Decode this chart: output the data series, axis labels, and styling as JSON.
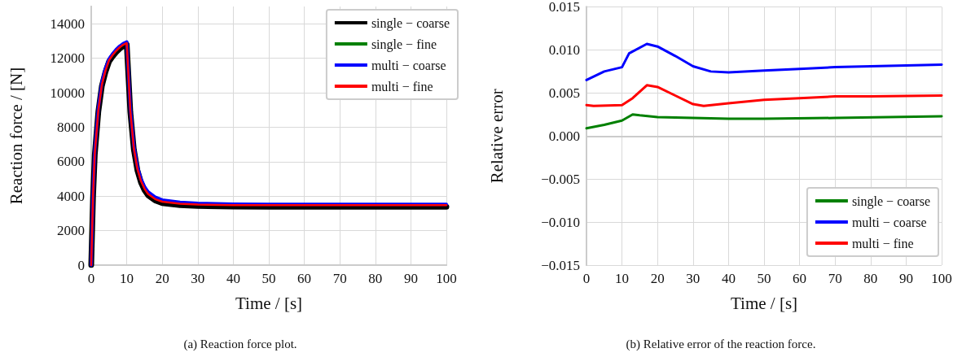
{
  "chart_data": [
    {
      "type": "line",
      "xlabel": "Time / [s]",
      "ylabel": "Reaction force / [N]",
      "annotations": [
        "(a) Reaction force plot."
      ],
      "xlim": [
        0,
        100
      ],
      "xticks": [
        0,
        10,
        20,
        30,
        40,
        50,
        60,
        70,
        80,
        90,
        100
      ],
      "ylim": [
        0,
        15000
      ],
      "yticks": [
        0,
        2000,
        4000,
        6000,
        8000,
        10000,
        12000,
        14000
      ],
      "grid": true,
      "legend": "top right",
      "line_style": "solid",
      "marker": "none",
      "x": [
        0,
        0.5,
        1,
        2,
        3,
        4,
        5,
        6,
        7,
        8,
        9,
        10,
        11,
        12,
        13,
        14,
        15,
        16,
        18,
        20,
        25,
        30,
        40,
        50,
        60,
        70,
        80,
        90,
        100
      ],
      "series": [
        {
          "name": "single − coarse",
          "color": "#000000",
          "values": [
            0,
            3900,
            6400,
            8900,
            10400,
            11200,
            11800,
            12100,
            12350,
            12550,
            12700,
            12800,
            8900,
            6700,
            5500,
            4800,
            4350,
            4050,
            3750,
            3600,
            3480,
            3430,
            3400,
            3390,
            3380,
            3380,
            3380,
            3380,
            3380
          ]
        },
        {
          "name": "single − fine",
          "color": "#008000",
          "values": [
            null,
            null,
            null,
            null,
            null,
            null,
            null,
            null,
            null,
            null,
            null,
            null,
            null,
            null,
            null,
            null,
            null,
            null,
            null,
            null,
            null,
            null,
            null,
            null,
            null,
            null,
            null,
            null,
            null
          ]
        },
        {
          "name": "multi − coarse",
          "color": "#0000ff",
          "values": [
            0,
            4100,
            6600,
            9100,
            10600,
            11400,
            11950,
            12250,
            12500,
            12700,
            12850,
            12950,
            9100,
            6900,
            5700,
            5000,
            4550,
            4250,
            3950,
            3780,
            3640,
            3580,
            3540,
            3530,
            3530,
            3530,
            3530,
            3530,
            3530
          ]
        },
        {
          "name": "multi − fine",
          "color": "#ff0000",
          "values": [
            0,
            3980,
            6480,
            8980,
            10480,
            11280,
            11880,
            12180,
            12430,
            12630,
            12780,
            12880,
            8980,
            6780,
            5580,
            4880,
            4430,
            4130,
            3830,
            3680,
            3560,
            3510,
            3480,
            3480,
            3480,
            3480,
            3480,
            3480,
            3480
          ]
        }
      ]
    },
    {
      "type": "line",
      "xlabel": "Time / [s]",
      "ylabel": "Relative error",
      "annotations": [
        "(b) Relative error of the reaction force."
      ],
      "xlim": [
        0,
        100
      ],
      "xticks": [
        0,
        10,
        20,
        30,
        40,
        50,
        60,
        70,
        80,
        90,
        100
      ],
      "ylim": [
        -0.015,
        0.015
      ],
      "yticks": [
        {
          "value": -0.015,
          "label": "−0.015"
        },
        {
          "value": -0.01,
          "label": "−0.010"
        },
        {
          "value": -0.005,
          "label": "−0.005"
        },
        {
          "value": 0,
          "label": "0.000"
        },
        {
          "value": 0.005,
          "label": "0.005"
        },
        {
          "value": 0.01,
          "label": "0.010"
        },
        {
          "value": 0.015,
          "label": "0.015"
        }
      ],
      "grid": true,
      "legend": "bottom right",
      "line_style": "solid",
      "marker": "none",
      "series": [
        {
          "name": "single − coarse",
          "color": "#008000",
          "x": [
            0,
            5,
            10,
            13,
            15,
            20,
            30,
            40,
            50,
            70,
            100
          ],
          "values": [
            0.0009,
            0.0013,
            0.0018,
            0.0025,
            0.0024,
            0.0022,
            0.0021,
            0.002,
            0.002,
            0.0021,
            0.0023
          ]
        },
        {
          "name": "multi − coarse",
          "color": "#0000ff",
          "x": [
            0,
            5,
            10,
            12,
            17,
            20,
            25,
            30,
            35,
            40,
            50,
            60,
            70,
            80,
            90,
            100
          ],
          "values": [
            0.0065,
            0.0075,
            0.008,
            0.0096,
            0.0107,
            0.0104,
            0.0093,
            0.0081,
            0.0075,
            0.0074,
            0.0076,
            0.0078,
            0.008,
            0.0081,
            0.0082,
            0.0083
          ]
        },
        {
          "name": "multi − fine",
          "color": "#ff0000",
          "x": [
            0,
            2,
            10,
            13,
            17,
            20,
            25,
            30,
            33,
            40,
            50,
            60,
            70,
            80,
            100
          ],
          "values": [
            0.0036,
            0.0035,
            0.0036,
            0.0044,
            0.0059,
            0.0057,
            0.0047,
            0.0037,
            0.0035,
            0.0038,
            0.0042,
            0.0044,
            0.0046,
            0.0046,
            0.0047
          ]
        }
      ]
    }
  ]
}
